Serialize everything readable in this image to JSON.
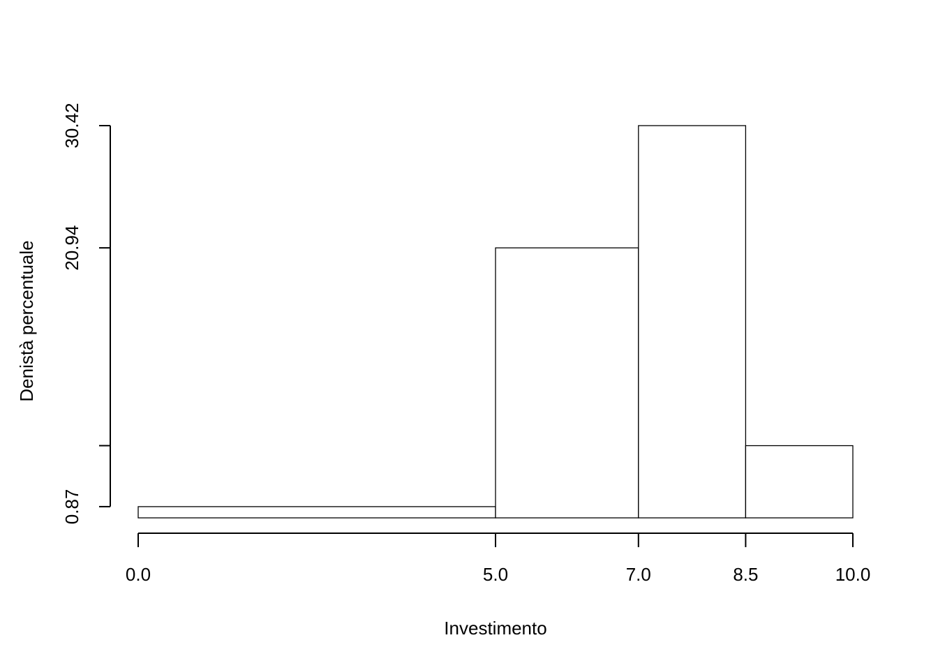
{
  "chart_data": {
    "type": "bar",
    "subtype": "histogram",
    "xlabel": "Investimento",
    "ylabel": "Denistà percentuale",
    "bins": [
      {
        "from": 0.0,
        "to": 5.0,
        "density": 0.87
      },
      {
        "from": 5.0,
        "to": 7.0,
        "density": 20.94
      },
      {
        "from": 7.0,
        "to": 8.5,
        "density": 30.42
      },
      {
        "from": 8.5,
        "to": 10.0,
        "density": 5.6
      }
    ],
    "x_ticks": [
      {
        "value": 0.0,
        "label": "0.0"
      },
      {
        "value": 5.0,
        "label": "5.0"
      },
      {
        "value": 7.0,
        "label": "7.0"
      },
      {
        "value": 8.5,
        "label": "8.5"
      },
      {
        "value": 10.0,
        "label": "10.0"
      }
    ],
    "y_ticks": [
      {
        "value": 0.87,
        "label": "0.87"
      },
      {
        "value": 5.6,
        "label": ""
      },
      {
        "value": 20.94,
        "label": "20.94"
      },
      {
        "value": 30.42,
        "label": "30.42"
      }
    ],
    "xlim": [
      0,
      10
    ],
    "ylim": [
      0,
      30.42
    ],
    "bar_fill": "#ffffff",
    "bar_stroke": "#000000",
    "grid": false,
    "legend": "none"
  }
}
